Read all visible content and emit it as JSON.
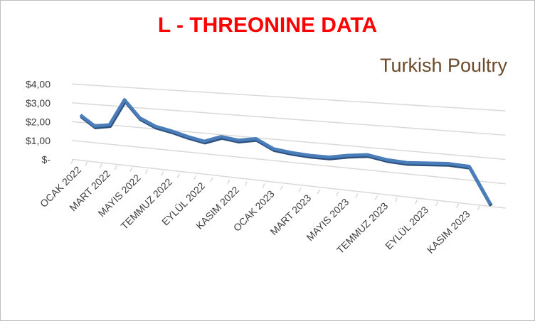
{
  "chart_data": {
    "type": "line",
    "title": "L - THREONINE DATA",
    "logo": "Turkish Poultry",
    "categories": [
      "OCAK 2022",
      null,
      "MART 2022",
      null,
      "MAYIS 2022",
      null,
      "TEMMUZ 2022",
      null,
      "EYLÜL 2022",
      null,
      "KASIM 2022",
      null,
      "OCAK 2023",
      null,
      "MART 2023",
      null,
      "MAYIS 2023",
      null,
      "TEMMUZ 2023",
      null,
      "EYLÜL 2023",
      null,
      "KASIM 2023",
      null
    ],
    "values": [
      2.4,
      1.9,
      2.05,
      3.4,
      2.55,
      2.2,
      2.05,
      1.85,
      1.7,
      2.0,
      1.9,
      2.05,
      1.65,
      1.55,
      1.5,
      1.5,
      1.65,
      1.75,
      1.6,
      1.55,
      1.6,
      1.65,
      1.6,
      0.1
    ],
    "color": "#4a7ebb",
    "ylim": [
      0,
      4
    ],
    "yticks": [
      {
        "value": 0,
        "label": "$-"
      },
      {
        "value": 1,
        "label": "$1,00"
      },
      {
        "value": 2,
        "label": "$2,00"
      },
      {
        "value": 3,
        "label": "$3,00"
      },
      {
        "value": 4,
        "label": "$4,00"
      }
    ],
    "grid": true
  }
}
